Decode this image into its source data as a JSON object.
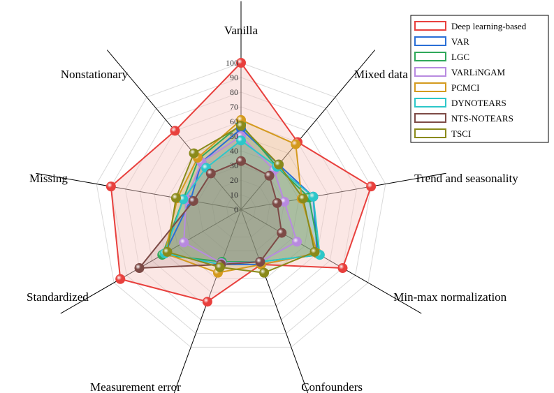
{
  "chart_data": {
    "type": "radar",
    "categories": [
      "Vanilla",
      "Mixed data",
      "Trend and seasonality",
      "Min-max normalization",
      "Confounders",
      "Measurement error",
      "Standardized",
      "Missing",
      "Nonstationary"
    ],
    "rlim": [
      0,
      100
    ],
    "ticks": [
      0,
      10,
      20,
      30,
      40,
      50,
      60,
      70,
      80,
      90,
      100
    ],
    "grid": true,
    "legend_position": "top-right",
    "series": [
      {
        "name": "Deep learning-based",
        "color": "#e8403d",
        "fill": "#f7c9c6",
        "values": [
          100,
          60,
          90,
          80,
          40,
          67,
          95,
          90,
          70
        ]
      },
      {
        "name": "VAR",
        "color": "#2a6fd6",
        "fill": null,
        "values": [
          55,
          40,
          50,
          60,
          40,
          40,
          60,
          35,
          42
        ]
      },
      {
        "name": "LGC",
        "color": "#2fa85a",
        "fill": null,
        "values": [
          58,
          38,
          47,
          62,
          38,
          38,
          62,
          40,
          45
        ]
      },
      {
        "name": "VARLiNGAM",
        "color": "#b88ae0",
        "fill": null,
        "values": [
          50,
          35,
          30,
          44,
          38,
          39,
          45,
          38,
          42
        ]
      },
      {
        "name": "PCMCI",
        "color": "#d49a1e",
        "fill": null,
        "values": [
          61,
          58,
          42,
          60,
          40,
          46,
          60,
          44,
          46
        ]
      },
      {
        "name": "DYNOTEARS",
        "color": "#2dc7c9",
        "fill": null,
        "values": [
          47,
          38,
          50,
          62,
          38,
          40,
          60,
          40,
          37
        ]
      },
      {
        "name": "NTS-NOTEARS",
        "color": "#7d4a46",
        "fill": null,
        "values": [
          33,
          30,
          25,
          32,
          38,
          40,
          80,
          33,
          32
        ]
      },
      {
        "name": "TSCI",
        "color": "#8a8a1a",
        "fill": null,
        "values": [
          57,
          40,
          43,
          58,
          46,
          42,
          58,
          45,
          50
        ]
      }
    ]
  }
}
